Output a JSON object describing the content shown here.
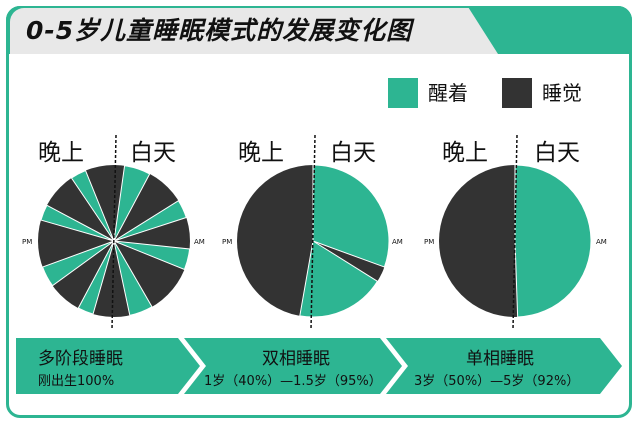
{
  "header": {
    "title": "0-5岁儿童睡眠模式的发展变化图"
  },
  "colors": {
    "awake": "#2db592",
    "asleep": "#333333",
    "border": "#2db592"
  },
  "legend": [
    {
      "label": "醒着",
      "color": "#2db592"
    },
    {
      "label": "睡觉",
      "color": "#333333"
    }
  ],
  "clock": {
    "night_label": "晚上",
    "day_label": "白天",
    "left_mark": "PM",
    "right_mark": "AM"
  },
  "chart_data": [
    {
      "type": "pie",
      "stage": "多阶段睡眠",
      "age_note": "刚出生100%",
      "awake_fraction": 0.28,
      "series": [
        {
          "name": "醒着",
          "values": []
        },
        {
          "name": "睡觉",
          "values": []
        }
      ]
    },
    {
      "type": "pie",
      "stage": "双相睡眠",
      "age_note": "1岁（40%）—1.5岁（95%）",
      "awake_fraction": 0.38
    },
    {
      "type": "pie",
      "stage": "单相睡眠",
      "age_note": "3岁（50%）—5岁（92%）",
      "awake_fraction": 0.49
    }
  ],
  "stages": [
    {
      "name": "多阶段睡眠",
      "detail": "刚出生100%"
    },
    {
      "name": "双相睡眠",
      "detail": "1岁（40%）—1.5岁（95%）"
    },
    {
      "name": "单相睡眠",
      "detail": "3岁（50%）—5岁（92%）"
    }
  ]
}
